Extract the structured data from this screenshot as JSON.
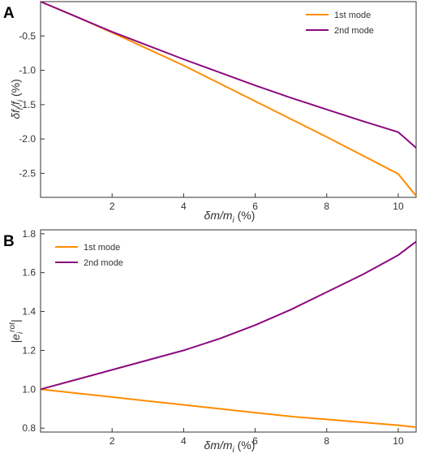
{
  "chart_data": [
    {
      "panel": "A",
      "type": "line",
      "title": "",
      "xlabel": "δm/m_i (%)",
      "ylabel": "δf_i/f_i (%)",
      "xlim": [
        0,
        10.5
      ],
      "ylim": [
        -2.85,
        0
      ],
      "xticks": [
        "2",
        "4",
        "6",
        "8",
        "10"
      ],
      "yticks": [
        "-0.5",
        "-1.0",
        "-1.5",
        "-2.0",
        "-2.5"
      ],
      "grid": false,
      "legend_position": "top-right",
      "x": [
        0,
        1,
        2,
        3,
        4,
        5,
        6,
        7,
        8,
        9,
        10,
        10.5
      ],
      "series": [
        {
          "name": "1st mode",
          "color": "#FF8C00",
          "values": [
            0,
            -0.22,
            -0.45,
            -0.69,
            -0.93,
            -1.19,
            -1.45,
            -1.71,
            -1.97,
            -2.24,
            -2.51,
            -2.83
          ]
        },
        {
          "name": "2nd mode",
          "color": "#8B0A7E",
          "values": [
            0,
            -0.22,
            -0.44,
            -0.64,
            -0.84,
            -1.03,
            -1.22,
            -1.4,
            -1.57,
            -1.74,
            -1.9,
            -2.13
          ]
        }
      ]
    },
    {
      "panel": "B",
      "type": "line",
      "title": "",
      "xlabel": "δm/m_i (%)",
      "ylabel": "|e_i^rot|",
      "xlim": [
        0,
        10.5
      ],
      "ylim": [
        0.78,
        1.82
      ],
      "xticks": [
        "2",
        "4",
        "6",
        "8",
        "10"
      ],
      "yticks": [
        "0.8",
        "1.0",
        "1.2",
        "1.4",
        "1.6",
        "1.8"
      ],
      "grid": false,
      "legend_position": "top-left",
      "x": [
        0,
        1,
        2,
        3,
        4,
        5,
        6,
        7,
        8,
        9,
        10,
        10.5
      ],
      "series": [
        {
          "name": "1st mode",
          "color": "#FF8C00",
          "values": [
            1.0,
            0.98,
            0.96,
            0.94,
            0.92,
            0.9,
            0.88,
            0.86,
            0.845,
            0.83,
            0.815,
            0.805
          ]
        },
        {
          "name": "2nd mode",
          "color": "#8B0A7E",
          "values": [
            1.0,
            1.05,
            1.1,
            1.15,
            1.2,
            1.26,
            1.33,
            1.41,
            1.5,
            1.59,
            1.69,
            1.76
          ]
        }
      ]
    }
  ],
  "panels": {
    "A": {
      "letter": "A",
      "xlabel_main": "δm/m",
      "xlabel_sub": "i",
      "xlabel_unit": " (%)",
      "ylabel_main": "δf",
      "ylabel_sub1": "i",
      "ylabel_slash": "/f",
      "ylabel_sub2": "i",
      "ylabel_unit": " (%)"
    },
    "B": {
      "letter": "B",
      "xlabel_main": "δm/m",
      "xlabel_sub": "i",
      "xlabel_unit": " (%)",
      "ylabel_left": "|e",
      "ylabel_sub": "i",
      "ylabel_sup": "rot",
      "ylabel_right": "|"
    }
  }
}
